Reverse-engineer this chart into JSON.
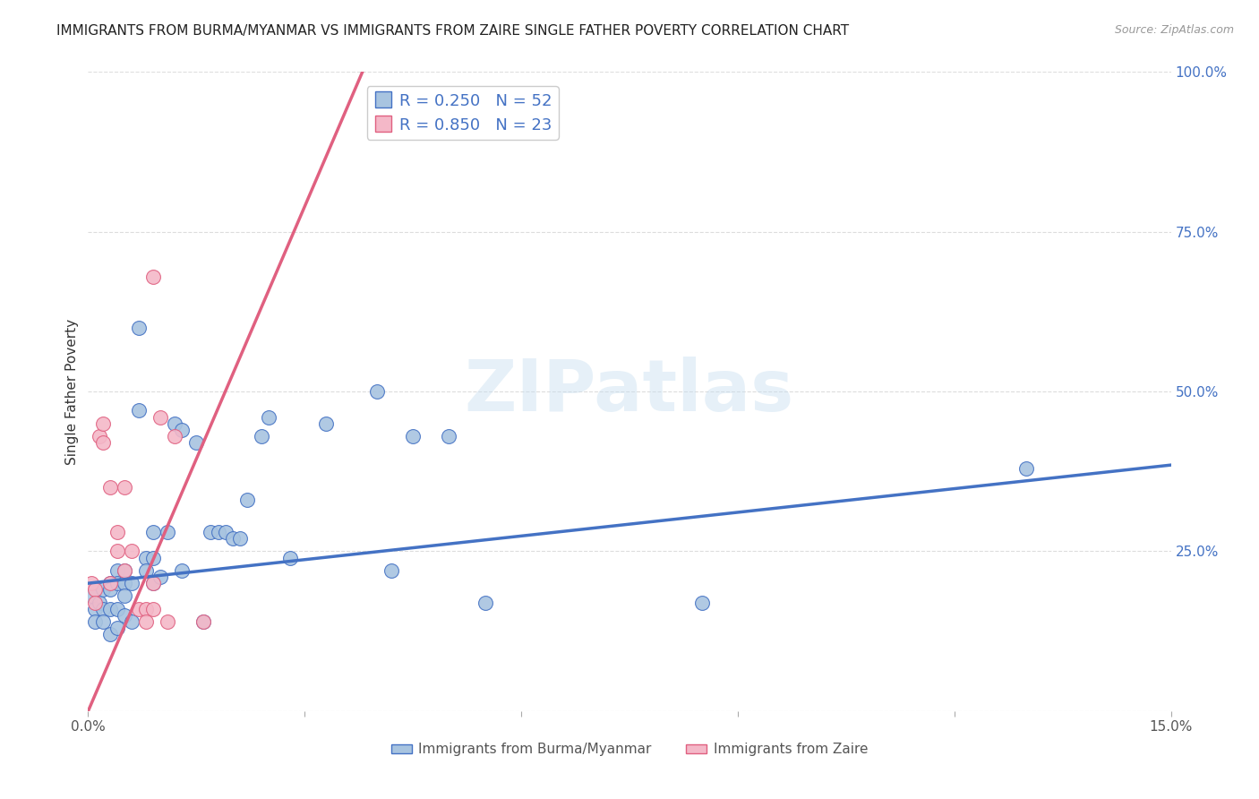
{
  "title": "IMMIGRANTS FROM BURMA/MYANMAR VS IMMIGRANTS FROM ZAIRE SINGLE FATHER POVERTY CORRELATION CHART",
  "source": "Source: ZipAtlas.com",
  "ylabel": "Single Father Poverty",
  "xlim": [
    0.0,
    0.15
  ],
  "ylim": [
    0.0,
    1.0
  ],
  "xtick_positions": [
    0.0,
    0.03,
    0.06,
    0.09,
    0.12,
    0.15
  ],
  "xticklabels": [
    "0.0%",
    "",
    "",
    "",
    "",
    "15.0%"
  ],
  "ytick_positions": [
    0.0,
    0.25,
    0.5,
    0.75,
    1.0
  ],
  "right_yticklabels": [
    "",
    "25.0%",
    "50.0%",
    "75.0%",
    "100.0%"
  ],
  "legend_r_blue": "R = 0.250",
  "legend_n_blue": "N = 52",
  "legend_r_pink": "R = 0.850",
  "legend_n_pink": "N = 23",
  "series1_label": "Immigrants from Burma/Myanmar",
  "series2_label": "Immigrants from Zaire",
  "blue_fill": "#a8c4e0",
  "blue_edge": "#4472c4",
  "pink_fill": "#f4b8c8",
  "pink_edge": "#e06080",
  "blue_line_color": "#4472c4",
  "pink_line_color": "#e06080",
  "watermark_text": "ZIPatlas",
  "blue_scatter_x": [
    0.0005,
    0.001,
    0.001,
    0.0015,
    0.002,
    0.002,
    0.002,
    0.003,
    0.003,
    0.003,
    0.003,
    0.004,
    0.004,
    0.004,
    0.004,
    0.005,
    0.005,
    0.005,
    0.005,
    0.006,
    0.006,
    0.007,
    0.007,
    0.008,
    0.008,
    0.009,
    0.009,
    0.009,
    0.01,
    0.011,
    0.012,
    0.013,
    0.013,
    0.015,
    0.016,
    0.017,
    0.018,
    0.019,
    0.02,
    0.021,
    0.022,
    0.024,
    0.025,
    0.028,
    0.033,
    0.04,
    0.042,
    0.045,
    0.05,
    0.055,
    0.085,
    0.13
  ],
  "blue_scatter_y": [
    0.18,
    0.16,
    0.14,
    0.17,
    0.19,
    0.16,
    0.14,
    0.2,
    0.19,
    0.16,
    0.12,
    0.22,
    0.2,
    0.16,
    0.13,
    0.22,
    0.2,
    0.18,
    0.15,
    0.2,
    0.14,
    0.6,
    0.47,
    0.24,
    0.22,
    0.28,
    0.24,
    0.2,
    0.21,
    0.28,
    0.45,
    0.44,
    0.22,
    0.42,
    0.14,
    0.28,
    0.28,
    0.28,
    0.27,
    0.27,
    0.33,
    0.43,
    0.46,
    0.24,
    0.45,
    0.5,
    0.22,
    0.43,
    0.43,
    0.17,
    0.17,
    0.38
  ],
  "pink_scatter_x": [
    0.0005,
    0.001,
    0.001,
    0.0015,
    0.002,
    0.002,
    0.003,
    0.003,
    0.004,
    0.004,
    0.005,
    0.005,
    0.006,
    0.007,
    0.008,
    0.008,
    0.009,
    0.009,
    0.009,
    0.01,
    0.011,
    0.012,
    0.016
  ],
  "pink_scatter_y": [
    0.2,
    0.19,
    0.17,
    0.43,
    0.45,
    0.42,
    0.2,
    0.35,
    0.28,
    0.25,
    0.22,
    0.35,
    0.25,
    0.16,
    0.16,
    0.14,
    0.2,
    0.16,
    0.68,
    0.46,
    0.14,
    0.43,
    0.14
  ],
  "blue_line_x": [
    0.0,
    0.15
  ],
  "blue_line_y": [
    0.2,
    0.385
  ],
  "pink_line_x": [
    0.0,
    0.038
  ],
  "pink_line_y": [
    0.0,
    1.0
  ],
  "background_color": "#ffffff",
  "grid_color": "#dddddd",
  "title_fontsize": 11,
  "ylabel_fontsize": 11,
  "tick_fontsize": 11,
  "legend_fontsize": 13
}
